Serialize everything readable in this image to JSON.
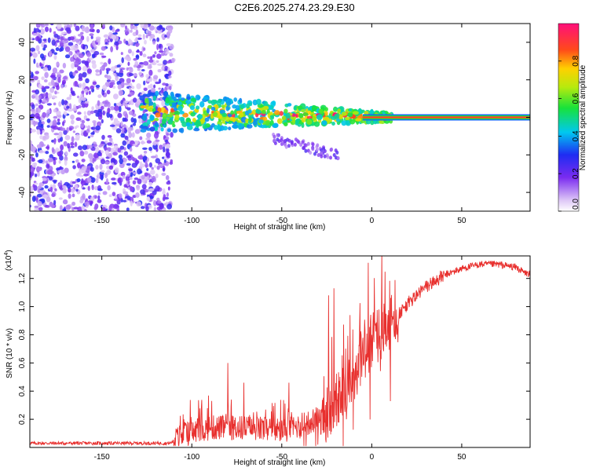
{
  "page_title": "C2E6.2025.274.23.29.E30",
  "chart_data": [
    {
      "type": "heatmap",
      "name": "spectrogram",
      "title": "C2E6.2025.274.23.29.E30",
      "xlabel": "Height of straight line (km)",
      "ylabel": "Frequency (Hz)",
      "xlim": [
        -190,
        88
      ],
      "ylim": [
        -50,
        50
      ],
      "x_ticks": [
        -150,
        -100,
        -50,
        0,
        50
      ],
      "y_ticks": [
        -40,
        -20,
        0,
        20,
        40
      ],
      "regions": [
        {
          "name": "noise",
          "x_range": [
            -190,
            -112
          ],
          "freq_range": [
            -50,
            50
          ],
          "amplitude_range": [
            0.05,
            0.3
          ]
        },
        {
          "name": "signal-band",
          "x_range": [
            -128,
            12
          ],
          "center_freq": [
            3,
            0
          ],
          "amplitude_range": [
            0.3,
            0.95
          ]
        },
        {
          "name": "carrier-line",
          "x_range": [
            -5,
            88
          ],
          "freq": 0,
          "amplitude": 1.0
        },
        {
          "name": "lower-tail",
          "x_range": [
            -55,
            -18
          ],
          "freq_range": [
            -22,
            -8
          ],
          "amplitude_range": [
            0.1,
            0.25
          ]
        }
      ],
      "colorbar": {
        "label": "Normalized spectral amplitude",
        "range": [
          0,
          1
        ],
        "ticks": [
          "0.0",
          "0.2",
          "0.4",
          "0.6",
          "0.8"
        ]
      }
    },
    {
      "type": "line",
      "name": "snr",
      "xlabel": "Height of straight line (km)",
      "ylabel": "SNR (10 * v/v)",
      "scale_label_base": "(x10",
      "scale_label_exp": "4",
      "scale_label_end": ")",
      "xlim": [
        -190,
        88
      ],
      "ylim": [
        0,
        1.36
      ],
      "x_ticks": [
        -150,
        -100,
        -50,
        0,
        50
      ],
      "y_ticks": [
        "0.2",
        "0.4",
        "0.6",
        "0.8",
        "1.0",
        "1.2"
      ],
      "color": "#e8302e",
      "trend": {
        "x": [
          -190,
          -112,
          -105,
          -90,
          -70,
          -50,
          -35,
          -25,
          -15,
          -5,
          0,
          10,
          20,
          30,
          40,
          50,
          60,
          70,
          80,
          85,
          88
        ],
        "y": [
          0.03,
          0.03,
          0.09,
          0.14,
          0.14,
          0.12,
          0.17,
          0.25,
          0.42,
          0.62,
          0.77,
          0.87,
          1.02,
          1.14,
          1.22,
          1.27,
          1.3,
          1.3,
          1.28,
          1.24,
          1.23
        ]
      },
      "spikes": [
        {
          "x": -80,
          "y": 0.6
        },
        {
          "x": -71,
          "y": 0.46
        },
        {
          "x": -46,
          "y": 0.46
        },
        {
          "x": -24,
          "y": 1.08
        },
        {
          "x": -21,
          "y": 1.13
        },
        {
          "x": -12,
          "y": 0.94
        },
        {
          "x": -6,
          "y": 0.8
        },
        {
          "x": 4,
          "y": 0.98
        },
        {
          "x": 8,
          "y": 0.95
        }
      ]
    }
  ]
}
